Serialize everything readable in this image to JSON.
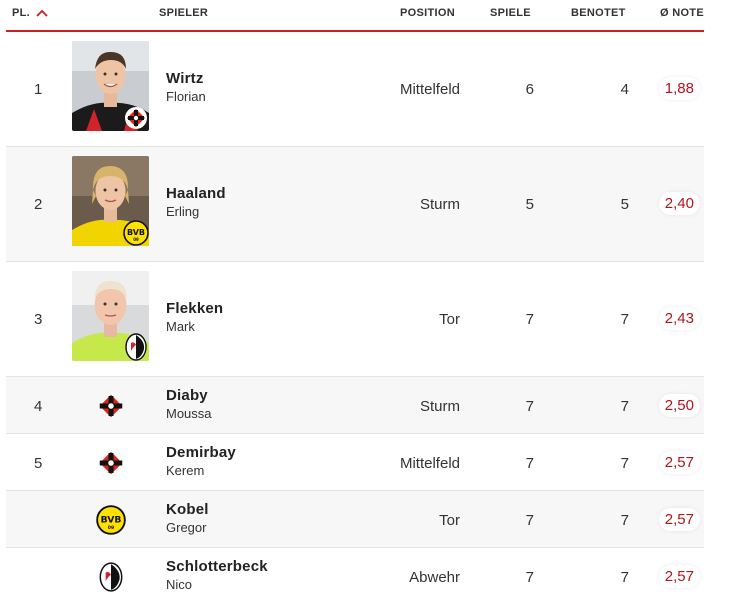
{
  "header": {
    "rank": "PL.",
    "player": "SPIELER",
    "position": "POSITION",
    "games": "SPIELE",
    "rated": "BENOTET",
    "note": "Ø NOTE",
    "sort_icon": "chevron-up-icon",
    "accent_color": "#cc1f1f"
  },
  "players": [
    {
      "rank": "1",
      "last": "Wirtz",
      "first": "Florian",
      "position": "Mittelfeld",
      "games": "6",
      "rated": "4",
      "note": "1,88",
      "club": "Bayer 04 Leverkusen",
      "crest": "leverkusen-crest-icon"
    },
    {
      "rank": "2",
      "last": "Haaland",
      "first": "Erling",
      "position": "Sturm",
      "games": "5",
      "rated": "5",
      "note": "2,40",
      "club": "Borussia Dortmund",
      "crest": "bvb-crest-icon"
    },
    {
      "rank": "3",
      "last": "Flekken",
      "first": "Mark",
      "position": "Tor",
      "games": "7",
      "rated": "7",
      "note": "2,43",
      "club": "SC Freiburg",
      "crest": "freiburg-crest-icon"
    },
    {
      "rank": "4",
      "last": "Diaby",
      "first": "Moussa",
      "position": "Sturm",
      "games": "7",
      "rated": "7",
      "note": "2,50",
      "club": "Bayer 04 Leverkusen",
      "crest": "leverkusen-crest-icon"
    },
    {
      "rank": "5",
      "last": "Demirbay",
      "first": "Kerem",
      "position": "Mittelfeld",
      "games": "7",
      "rated": "7",
      "note": "2,57",
      "club": "Bayer 04 Leverkusen",
      "crest": "leverkusen-crest-icon"
    },
    {
      "rank": "",
      "last": "Kobel",
      "first": "Gregor",
      "position": "Tor",
      "games": "7",
      "rated": "7",
      "note": "2,57",
      "club": "Borussia Dortmund",
      "crest": "bvb-crest-icon"
    },
    {
      "rank": "",
      "last": "Schlotterbeck",
      "first": "Nico",
      "position": "Abwehr",
      "games": "7",
      "rated": "7",
      "note": "2,57",
      "club": "SC Freiburg",
      "crest": "freiburg-crest-icon"
    }
  ]
}
